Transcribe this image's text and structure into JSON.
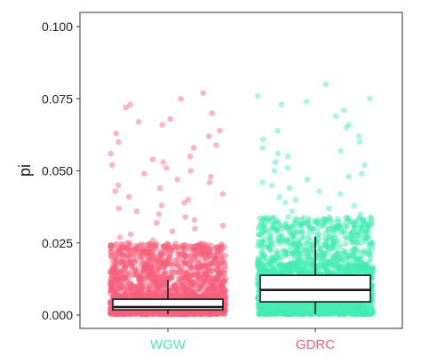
{
  "chart_data": {
    "type": "box-jitter",
    "title": "",
    "xlabel": "",
    "ylabel": "pi",
    "ylim": [
      0,
      0.1
    ],
    "y_ticks": [
      "0.000",
      "0.025",
      "0.050",
      "0.075",
      "0.100"
    ],
    "y_tick_values": [
      0,
      0.025,
      0.05,
      0.075,
      0.1
    ],
    "grid": false,
    "legend": "none",
    "categories": [
      "WGW",
      "GDRC"
    ],
    "category_label_colors": [
      "#4ee8b4",
      "#f0607e"
    ],
    "series": [
      {
        "category": "WGW",
        "point_color": "#f8607c",
        "box": {
          "whisker_low": 0.0003,
          "q1": 0.0018,
          "median": 0.0028,
          "q3": 0.0055,
          "whisker_high": 0.0122
        },
        "dense_max": 0.025,
        "outliers": [
          0.077,
          0.075,
          0.073,
          0.072,
          0.07,
          0.068,
          0.067,
          0.066,
          0.064,
          0.063,
          0.062,
          0.06,
          0.059,
          0.058,
          0.056,
          0.055,
          0.054,
          0.053,
          0.052,
          0.051,
          0.05,
          0.049,
          0.048,
          0.047,
          0.046,
          0.045,
          0.044,
          0.043,
          0.042,
          0.041,
          0.04,
          0.039,
          0.038,
          0.037,
          0.036,
          0.035,
          0.034,
          0.033,
          0.032,
          0.031,
          0.03,
          0.029,
          0.028,
          0.027,
          0.026
        ]
      },
      {
        "category": "GDRC",
        "point_color": "#45ecb4",
        "box": {
          "whisker_low": 0.0003,
          "q1": 0.0046,
          "median": 0.0087,
          "q3": 0.0138,
          "whisker_high": 0.0272
        },
        "dense_max": 0.034,
        "outliers": [
          0.08,
          0.076,
          0.075,
          0.074,
          0.073,
          0.071,
          0.069,
          0.066,
          0.065,
          0.064,
          0.062,
          0.061,
          0.06,
          0.058,
          0.057,
          0.056,
          0.055,
          0.053,
          0.052,
          0.051,
          0.05,
          0.049,
          0.048,
          0.047,
          0.046,
          0.045,
          0.044,
          0.043,
          0.042,
          0.041,
          0.04,
          0.039,
          0.038,
          0.037,
          0.036,
          0.035
        ]
      }
    ]
  }
}
